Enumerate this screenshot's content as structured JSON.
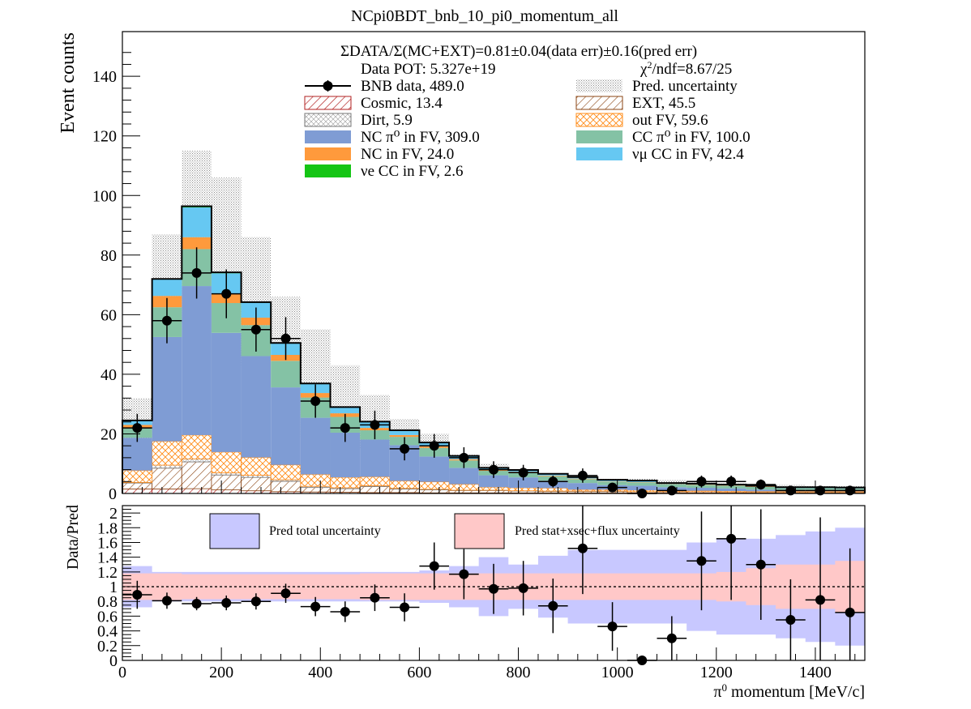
{
  "chart_data": [
    {
      "type": "bar",
      "title": "NCpi0BDT_bnb_10_pi0_momentum_all",
      "ylabel": "Event counts",
      "xlim": [
        0,
        1500
      ],
      "ylim": [
        0,
        155
      ],
      "yticks": [
        0,
        20,
        40,
        60,
        80,
        100,
        120,
        140
      ],
      "bin_edges": [
        0,
        60,
        120,
        180,
        240,
        300,
        360,
        420,
        480,
        540,
        600,
        660,
        720,
        780,
        840,
        900,
        960,
        1020,
        1080,
        1140,
        1200,
        1260,
        1320,
        1380,
        1440,
        1500
      ],
      "stacked": true,
      "summary_text": {
        "ratio": "ΣDATA/Σ(MC+EXT)=0.81±0.04(data err)±0.16(pred err)",
        "pot": "Data POT: 5.327e+19",
        "chi2": "χ²/ndf=8.67/25"
      },
      "legend": [
        {
          "key": "data",
          "text": "BNB data, 489.0"
        },
        {
          "key": "uncertainty",
          "text": "Pred. uncertainty"
        },
        {
          "key": "cosmic",
          "text": "Cosmic, 13.4"
        },
        {
          "key": "ext",
          "text": "EXT, 45.5"
        },
        {
          "key": "dirt",
          "text": "Dirt, 5.9"
        },
        {
          "key": "outfv",
          "text": "out FV, 59.6"
        },
        {
          "key": "ncpi0",
          "text": "NC π⁰ in FV,  309.0"
        },
        {
          "key": "ccpi0",
          "text": "CC π⁰ in FV, 100.0"
        },
        {
          "key": "nc",
          "text": "NC in FV, 24.0"
        },
        {
          "key": "numucc",
          "text": "νμ CC in FV, 42.4"
        },
        {
          "key": "nuecc",
          "text": "νe CC in FV, 2.6"
        }
      ],
      "series": [
        {
          "key": "cosmic",
          "values": [
            1.5,
            1.5,
            1.6,
            1.2,
            0.9,
            0.6,
            0.5,
            0.4,
            0.3,
            0.3,
            0.2,
            0.2,
            0.2,
            0.2,
            0.2,
            0.2,
            0.2,
            0.2,
            0.2,
            0.2,
            0.2,
            0.2,
            0.2,
            0.2,
            0.2
          ]
        },
        {
          "key": "ext",
          "values": [
            2.0,
            7.0,
            9.0,
            5.0,
            4.5,
            3.5,
            1.5,
            1.2,
            2.0,
            1.2,
            1.0,
            0.8,
            0.8,
            0.6,
            0.5,
            0.5,
            0.5,
            0.4,
            0.4,
            0.4,
            0.3,
            0.3,
            0.3,
            0.3,
            0.3
          ]
        },
        {
          "key": "dirt",
          "values": [
            0.2,
            1.0,
            1.0,
            0.7,
            0.7,
            0.5,
            0.4,
            0.3,
            0.3,
            0.2,
            0.2,
            0.1,
            0.1,
            0.1,
            0.1,
            0.1,
            0.1,
            0.0,
            0.0,
            0.0,
            0.0,
            0.0,
            0.0,
            0.0,
            0.0
          ]
        },
        {
          "key": "outfv",
          "values": [
            4.0,
            8.0,
            8.0,
            7.0,
            6.0,
            5.0,
            4.0,
            3.5,
            3.0,
            2.5,
            2.5,
            2.0,
            1.0,
            1.0,
            1.0,
            0.5,
            0.5,
            0.5,
            0.3,
            0.3,
            0.3,
            0.2,
            0.2,
            0.2,
            0.2
          ]
        },
        {
          "key": "ncpi0",
          "values": [
            11.0,
            35.0,
            50.0,
            40.0,
            34.0,
            26.0,
            19.0,
            15.0,
            12.5,
            12.0,
            8.5,
            5.5,
            4.0,
            3.5,
            2.5,
            2.2,
            1.5,
            1.5,
            1.2,
            1.0,
            0.9,
            0.6,
            0.5,
            0.5,
            0.5
          ]
        },
        {
          "key": "ccpi0",
          "values": [
            3.3,
            10.0,
            12.4,
            10.0,
            10.4,
            8.9,
            6.8,
            5.3,
            3.1,
            2.8,
            2.9,
            2.5,
            1.5,
            1.7,
            1.5,
            1.3,
            1.2,
            1.1,
            1.0,
            1.0,
            0.9,
            0.9,
            0.6,
            0.6,
            0.5
          ]
        },
        {
          "key": "nc",
          "values": [
            1.0,
            3.8,
            4.0,
            3.0,
            2.5,
            2.0,
            1.5,
            1.2,
            0.8,
            0.6,
            0.5,
            0.4,
            0.3,
            0.2,
            0.2,
            0.2,
            0.1,
            0.1,
            0.1,
            0.1,
            0.1,
            0.1,
            0.0,
            0.0,
            0.0
          ]
        },
        {
          "key": "numucc",
          "values": [
            1.5,
            5.5,
            10.0,
            7.0,
            5.0,
            3.8,
            3.0,
            2.0,
            2.0,
            1.5,
            1.2,
            1.0,
            0.6,
            0.5,
            0.5,
            0.4,
            0.4,
            0.4,
            0.3,
            0.3,
            0.3,
            0.3,
            0.3,
            0.3,
            0.3
          ]
        },
        {
          "key": "nuecc",
          "values": [
            0.0,
            0.2,
            0.4,
            0.3,
            0.2,
            0.2,
            0.2,
            0.1,
            0.1,
            0.1,
            0.1,
            0.1,
            0.1,
            0.1,
            0.1,
            0.1,
            0.1,
            0.1,
            0.0,
            0.0,
            0.0,
            0.0,
            0.0,
            0.0,
            0.0
          ]
        }
      ],
      "uncertainty_high": [
        32,
        87,
        115,
        106,
        86,
        66,
        55,
        43,
        33,
        25,
        20,
        13,
        10,
        8,
        6,
        5.5,
        5,
        5,
        4.5,
        4,
        3.5,
        3,
        3,
        2.5,
        2.5
      ],
      "data_points": {
        "x": [
          30,
          90,
          150,
          210,
          270,
          330,
          390,
          450,
          510,
          570,
          630,
          690,
          750,
          810,
          870,
          930,
          990,
          1050,
          1110,
          1170,
          1230,
          1290,
          1350,
          1410,
          1470
        ],
        "y": [
          22,
          58,
          74,
          67,
          55,
          52,
          31,
          22,
          23,
          15,
          16,
          12,
          8,
          7,
          4,
          6,
          2,
          0,
          1,
          4,
          4,
          3,
          1,
          1,
          1
        ],
        "yerr": [
          4.7,
          7.6,
          8.6,
          8.2,
          7.4,
          7.2,
          5.6,
          4.7,
          4.8,
          3.9,
          4.0,
          3.5,
          2.8,
          2.6,
          2.0,
          2.4,
          1.4,
          0,
          1.0,
          2.0,
          2.0,
          1.7,
          1.0,
          1.0,
          1.0
        ],
        "xerr": 30
      }
    },
    {
      "type": "scatter",
      "ylabel": "Data/Pred",
      "xlabel": "π⁰ momentum [MeV/c]",
      "xlim": [
        0,
        1500
      ],
      "ylim": [
        0,
        2.1
      ],
      "yticks": [
        "0",
        "0.2",
        "0.4",
        "0.6",
        "0.8",
        "1",
        "1.2",
        "1.4",
        "1.6",
        "1.8",
        "2"
      ],
      "xticks": [
        "0",
        "200",
        "400",
        "600",
        "800",
        "1000",
        "1200",
        "1400"
      ],
      "reference_line": 1,
      "legend": [
        {
          "key": "total",
          "text": "Pred total uncertainty"
        },
        {
          "key": "stat",
          "text": "Pred stat+xsec+flux uncertainty"
        }
      ],
      "band_total": {
        "low": [
          0.72,
          0.8,
          0.8,
          0.8,
          0.8,
          0.8,
          0.8,
          0.8,
          0.8,
          0.8,
          0.78,
          0.72,
          0.6,
          0.7,
          0.58,
          0.5,
          0.5,
          0.5,
          0.5,
          0.4,
          0.35,
          0.35,
          0.3,
          0.25,
          0.2
        ],
        "high": [
          1.28,
          1.2,
          1.2,
          1.2,
          1.2,
          1.2,
          1.2,
          1.2,
          1.2,
          1.2,
          1.22,
          1.28,
          1.4,
          1.3,
          1.42,
          1.5,
          1.5,
          1.5,
          1.5,
          1.6,
          1.65,
          1.65,
          1.7,
          1.75,
          1.8
        ]
      },
      "band_stat": {
        "low": [
          0.82,
          0.82,
          0.83,
          0.83,
          0.83,
          0.83,
          0.83,
          0.83,
          0.82,
          0.82,
          0.82,
          0.82,
          0.82,
          0.82,
          0.82,
          0.82,
          0.82,
          0.82,
          0.82,
          0.82,
          0.8,
          0.75,
          0.7,
          0.7,
          0.65
        ],
        "high": [
          1.18,
          1.18,
          1.17,
          1.17,
          1.17,
          1.17,
          1.17,
          1.17,
          1.18,
          1.18,
          1.18,
          1.18,
          1.18,
          1.18,
          1.18,
          1.18,
          1.18,
          1.18,
          1.18,
          1.18,
          1.2,
          1.25,
          1.3,
          1.3,
          1.35
        ]
      },
      "points": {
        "x": [
          30,
          90,
          150,
          210,
          270,
          330,
          390,
          450,
          510,
          570,
          630,
          690,
          750,
          810,
          870,
          930,
          990,
          1050,
          1110,
          1170,
          1230,
          1290,
          1350,
          1410,
          1470
        ],
        "y": [
          0.89,
          0.81,
          0.77,
          0.78,
          0.8,
          0.91,
          0.73,
          0.66,
          0.85,
          0.72,
          1.28,
          1.17,
          0.97,
          0.98,
          0.74,
          1.52,
          0.46,
          0.0,
          0.3,
          1.35,
          1.65,
          1.3,
          0.55,
          0.82,
          0.65
        ],
        "yerr": [
          0.19,
          0.11,
          0.09,
          0.1,
          0.11,
          0.13,
          0.13,
          0.14,
          0.18,
          0.19,
          0.32,
          0.34,
          0.34,
          0.37,
          0.37,
          0.62,
          0.33,
          0,
          0.3,
          0.67,
          0.83,
          0.75,
          0.55,
          1.12,
          0.87
        ],
        "xerr": 30
      }
    }
  ]
}
